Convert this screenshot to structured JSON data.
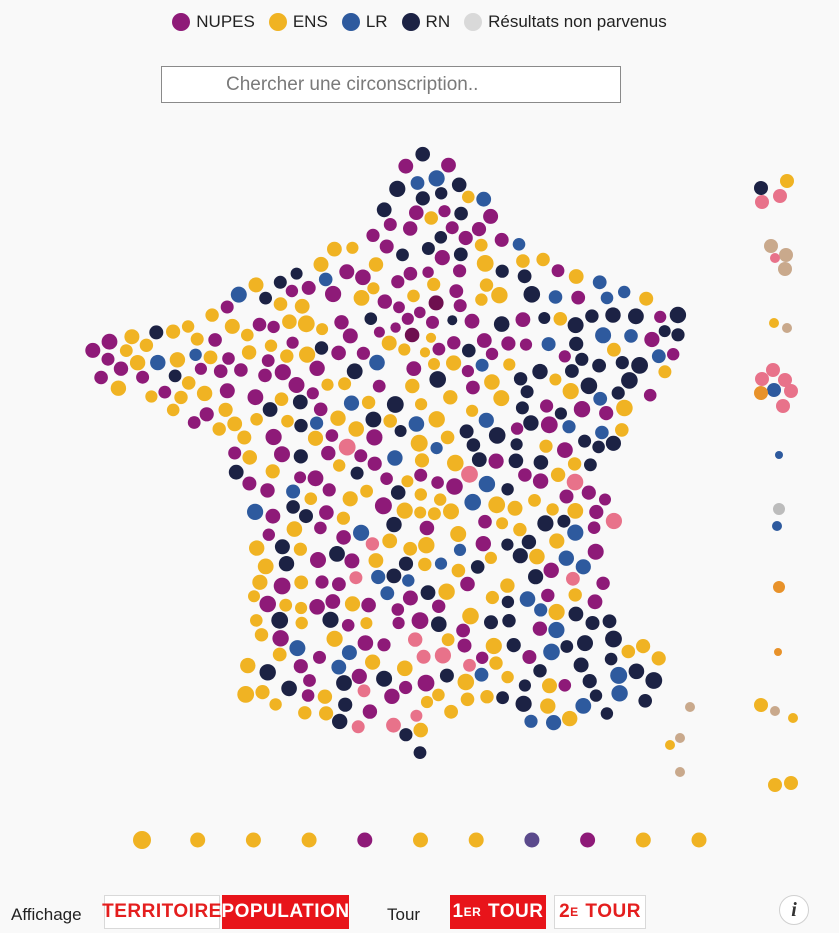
{
  "colors": {
    "NUPES": "#8e1a78",
    "ENS": "#f0b323",
    "LR": "#2e5a9e",
    "RN": "#1c2244",
    "pending": "#d9d9d9",
    "other_pink": "#e8728a",
    "other_tan": "#c9a98c",
    "other_orange": "#e8922a",
    "accent": "#e8141a"
  },
  "legend": [
    {
      "key": "NUPES",
      "label": "NUPES"
    },
    {
      "key": "ENS",
      "label": "ENS"
    },
    {
      "key": "LR",
      "label": "LR"
    },
    {
      "key": "RN",
      "label": "RN"
    },
    {
      "key": "pending",
      "label": "Résultats non parvenus"
    }
  ],
  "search": {
    "placeholder": "Chercher une circonscription.."
  },
  "controls": {
    "affichage_label": "Affichage",
    "territoire_label": "TERRITOIRE",
    "population_label": "POPULATION",
    "tour_label": "Tour",
    "tour1_number": "1",
    "tour1_suffix": "ER",
    "tour1_word": " TOUR",
    "tour2_number": "2",
    "tour2_suffix": "E",
    "tour2_word": " TOUR",
    "info_label": "i"
  },
  "overseas_row": [
    "ENS",
    "ENS",
    "ENS",
    "ENS",
    "NUPES",
    "ENS",
    "ENS",
    "LR",
    "NUPES",
    "ENS",
    "ENS"
  ]
}
